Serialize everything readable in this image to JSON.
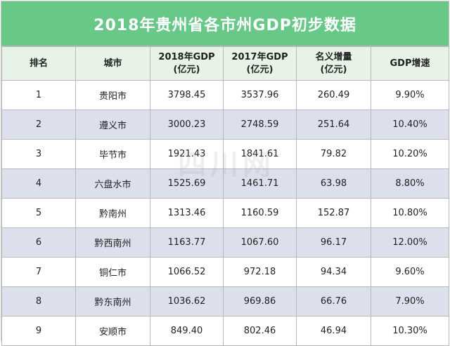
{
  "title": "2018年贵州省各市州GDP初步数据",
  "headers": [
    {
      "line1": "排名",
      "line2": ""
    },
    {
      "line1": "城市",
      "line2": ""
    },
    {
      "line1": "2018年GDP",
      "line2": "(亿元)"
    },
    {
      "line1": "2017年GDP",
      "line2": "(亿元)"
    },
    {
      "line1": "名义增量",
      "line2": "(亿元)"
    },
    {
      "line1": "GDP增速",
      "line2": ""
    }
  ],
  "rows": [
    {
      "rank": "1",
      "city": "贵阳市",
      "gdp2018": "3798.45",
      "gdp2017": "3537.96",
      "increase": "260.49",
      "growth": "9.90%"
    },
    {
      "rank": "2",
      "city": "遵义市",
      "gdp2018": "3000.23",
      "gdp2017": "2748.59",
      "increase": "251.64",
      "growth": "10.40%"
    },
    {
      "rank": "3",
      "city": "毕节市",
      "gdp2018": "1921.43",
      "gdp2017": "1841.61",
      "increase": "79.82",
      "growth": "10.20%"
    },
    {
      "rank": "4",
      "city": "六盘水市",
      "gdp2018": "1525.69",
      "gdp2017": "1461.71",
      "increase": "63.98",
      "growth": "8.80%"
    },
    {
      "rank": "5",
      "city": "黔南州",
      "gdp2018": "1313.46",
      "gdp2017": "1160.59",
      "increase": "152.87",
      "growth": "10.80%"
    },
    {
      "rank": "6",
      "city": "黔西南州",
      "gdp2018": "1163.77",
      "gdp2017": "1067.60",
      "increase": "96.17",
      "growth": "12.00%"
    },
    {
      "rank": "7",
      "city": "铜仁市",
      "gdp2018": "1066.52",
      "gdp2017": "972.18",
      "increase": "94.34",
      "growth": "9.60%"
    },
    {
      "rank": "8",
      "city": "黔东南州",
      "gdp2018": "1036.62",
      "gdp2017": "969.86",
      "increase": "66.76",
      "growth": "7.90%"
    },
    {
      "rank": "9",
      "city": "安顺市",
      "gdp2018": "849.40",
      "gdp2017": "802.46",
      "increase": "46.94",
      "growth": "10.30%"
    }
  ],
  "watermark": "四川网",
  "colors": {
    "title_bg": "#67c887",
    "header_bg": "#e6f3e6",
    "alt_row_bg": "#dcdfec"
  }
}
